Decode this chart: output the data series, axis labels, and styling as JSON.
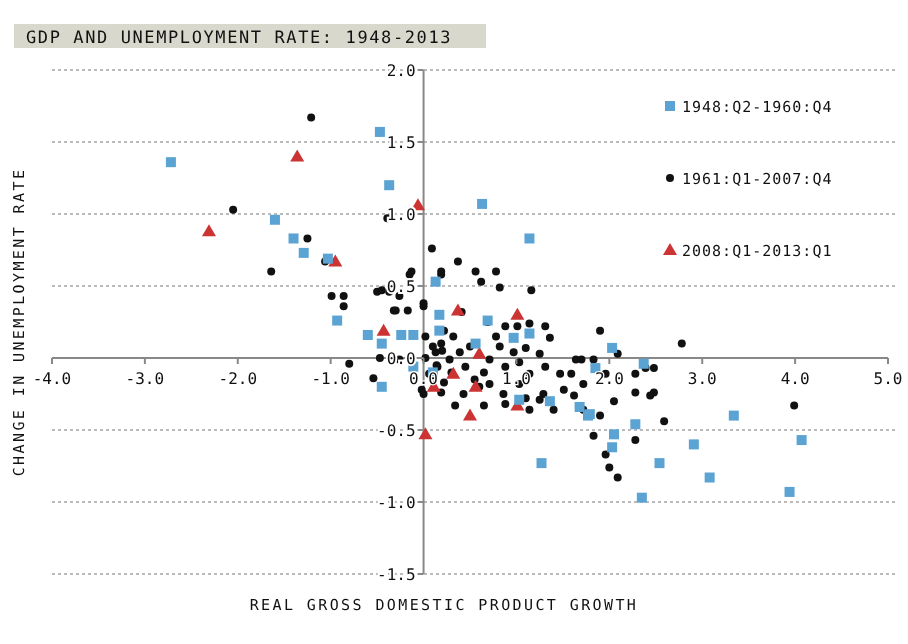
{
  "chart_data": {
    "type": "scatter",
    "title": "GDP AND UNEMPLOYMENT RATE: 1948-2013",
    "xlabel": "REAL GROSS DOMESTIC PRODUCT GROWTH",
    "ylabel": "CHANGE IN UNEMPLOYMENT RATE",
    "xlim": [
      -4,
      5
    ],
    "ylim": [
      -1.5,
      2
    ],
    "xticks": [
      {
        "value": -4,
        "label": "-4.0"
      },
      {
        "value": -3,
        "label": "-3.0"
      },
      {
        "value": -2,
        "label": "-2.0"
      },
      {
        "value": -1,
        "label": "-1.0"
      },
      {
        "value": 0,
        "label": "0.0"
      },
      {
        "value": 1,
        "label": "1.0"
      },
      {
        "value": 2,
        "label": "2.0"
      },
      {
        "value": 3,
        "label": "3.0"
      },
      {
        "value": 4,
        "label": "4.0"
      },
      {
        "value": 5,
        "label": "5.0"
      }
    ],
    "yticks": [
      {
        "value": -1.5,
        "label": "-1.5"
      },
      {
        "value": -1,
        "label": "-1.0"
      },
      {
        "value": -0.5,
        "label": "-0.5"
      },
      {
        "value": 0,
        "label": "0.0"
      },
      {
        "value": 0.5,
        "label": "0.5"
      },
      {
        "value": 1,
        "label": "1.0"
      },
      {
        "value": 1.5,
        "label": "1.5"
      },
      {
        "value": 2,
        "label": "2.0"
      }
    ],
    "grid": "y",
    "legend": "top right",
    "series": [
      {
        "name": "1948:Q2-1960:Q4",
        "color": "#5ba3d3",
        "marker": "square",
        "x": [
          -2.72,
          -0.47,
          -0.37,
          -1.6,
          -1.4,
          -1.29,
          -1.03,
          -0.93,
          -0.6,
          -0.45,
          -0.24,
          -0.11,
          -0.11,
          -0.45,
          0.13,
          0.17,
          0.17,
          0.1,
          0.63,
          1.14,
          0.69,
          0.97,
          0.56,
          1.03,
          1.36,
          1.79,
          2.03,
          2.05,
          1.14,
          1.85,
          2.37,
          1.68,
          1.77,
          2.28,
          3.34,
          2.03,
          2.91,
          4.07,
          1.27,
          2.54,
          3.08,
          2.35,
          3.94
        ],
        "values": [
          1.36,
          1.57,
          1.2,
          0.96,
          0.83,
          0.73,
          0.69,
          0.26,
          0.16,
          0.1,
          0.16,
          0.16,
          -0.06,
          -0.2,
          0.53,
          0.3,
          0.19,
          -0.1,
          1.07,
          0.83,
          0.26,
          0.14,
          0.1,
          -0.29,
          -0.3,
          -0.39,
          0.07,
          -0.53,
          0.17,
          -0.07,
          -0.04,
          -0.34,
          -0.4,
          -0.46,
          -0.4,
          -0.62,
          -0.6,
          -0.57,
          -0.73,
          -0.73,
          -0.83,
          -0.97,
          -0.93
        ]
      },
      {
        "name": "1961:Q1-2007:Q4",
        "color": "#111111",
        "marker": "circle",
        "x": [
          -1.21,
          -2.05,
          -1.25,
          -1.64,
          -1.06,
          -0.39,
          -0.99,
          -0.86,
          -0.86,
          -0.5,
          -0.37,
          -0.26,
          -0.15,
          -0.32,
          -0.17,
          0,
          0.09,
          0.19,
          0.37,
          -0.8,
          -0.54,
          -0.47,
          0.02,
          -0.02,
          0.19,
          0.34,
          0.19,
          -0.13,
          0.56,
          0.78,
          0.62,
          0.82,
          1.16,
          -0.45,
          0,
          -0.3,
          0.41,
          0.69,
          0.88,
          1.01,
          1.14,
          1.31,
          0.22,
          0.02,
          0.32,
          0.78,
          1.36,
          0.19,
          0.5,
          0.82,
          1.1,
          0.13,
          0.39,
          0.97,
          1.25,
          1.64,
          1.83,
          0.28,
          0.71,
          1.03,
          0.15,
          0.45,
          0.88,
          1.31,
          0.06,
          0.65,
          1.14,
          1.47,
          0.22,
          0.71,
          1.03,
          1.72,
          0,
          0.43,
          0.86,
          1.29,
          1.62,
          0.65,
          1.14,
          1.72,
          1.9,
          1.83,
          -0.26,
          1.9,
          2.78,
          2.09,
          1.96,
          2.39,
          2.48,
          2.28,
          2.48,
          2.44,
          2.28,
          2.05,
          1.51,
          1.59,
          1.7,
          2.59,
          3.99,
          2.28,
          1.96,
          2.0,
          2.09,
          1.4,
          1.25,
          1.1,
          0.88,
          0.1,
          0.14,
          0.2,
          0.3,
          0.55,
          0.6
        ],
        "values": [
          1.67,
          1.03,
          0.83,
          0.6,
          0.67,
          0.97,
          0.43,
          0.43,
          0.36,
          0.46,
          0.46,
          0.43,
          0.58,
          0.33,
          0.33,
          0.36,
          0.76,
          0.58,
          0.67,
          -0.04,
          -0.14,
          0,
          0,
          -0.22,
          -0.24,
          -0.33,
          0.6,
          0.6,
          0.6,
          0.6,
          0.53,
          0.49,
          0.47,
          0.47,
          0.38,
          0.33,
          0.32,
          0.25,
          0.22,
          0.22,
          0.24,
          0.22,
          0.19,
          0.15,
          0.15,
          0.15,
          0.14,
          0.1,
          0.08,
          0.08,
          0.07,
          0.04,
          0.04,
          0.04,
          0.03,
          -0.01,
          -0.01,
          -0.01,
          -0.01,
          -0.03,
          -0.06,
          -0.06,
          -0.06,
          -0.06,
          -0.11,
          -0.1,
          -0.11,
          -0.11,
          -0.17,
          -0.18,
          -0.18,
          -0.18,
          -0.25,
          -0.25,
          -0.25,
          -0.25,
          -0.26,
          -0.33,
          -0.36,
          -0.36,
          -0.4,
          -0.54,
          -0.01,
          0.19,
          0.1,
          0.03,
          -0.11,
          -0.07,
          -0.07,
          -0.11,
          -0.24,
          -0.26,
          -0.24,
          -0.3,
          -0.22,
          -0.11,
          -0.01,
          -0.44,
          -0.33,
          -0.57,
          -0.67,
          -0.76,
          -0.83,
          -0.36,
          -0.29,
          -0.28,
          -0.32,
          0.08,
          -0.05,
          0.05,
          -0.1,
          -0.15,
          -0.2
        ]
      },
      {
        "name": "2008:Q1-2013:Q1",
        "color": "#cc3333",
        "marker": "triangle",
        "x": [
          -2.31,
          -1.36,
          -0.06,
          -0.95,
          -0.43,
          0.37,
          1.01,
          0.6,
          0.32,
          0.11,
          0.56,
          0.5,
          1.01,
          0.02
        ],
        "values": [
          0.88,
          1.4,
          1.06,
          0.67,
          0.19,
          0.33,
          0.3,
          0.03,
          -0.11,
          -0.2,
          -0.2,
          -0.4,
          -0.33,
          -0.53
        ]
      }
    ]
  }
}
